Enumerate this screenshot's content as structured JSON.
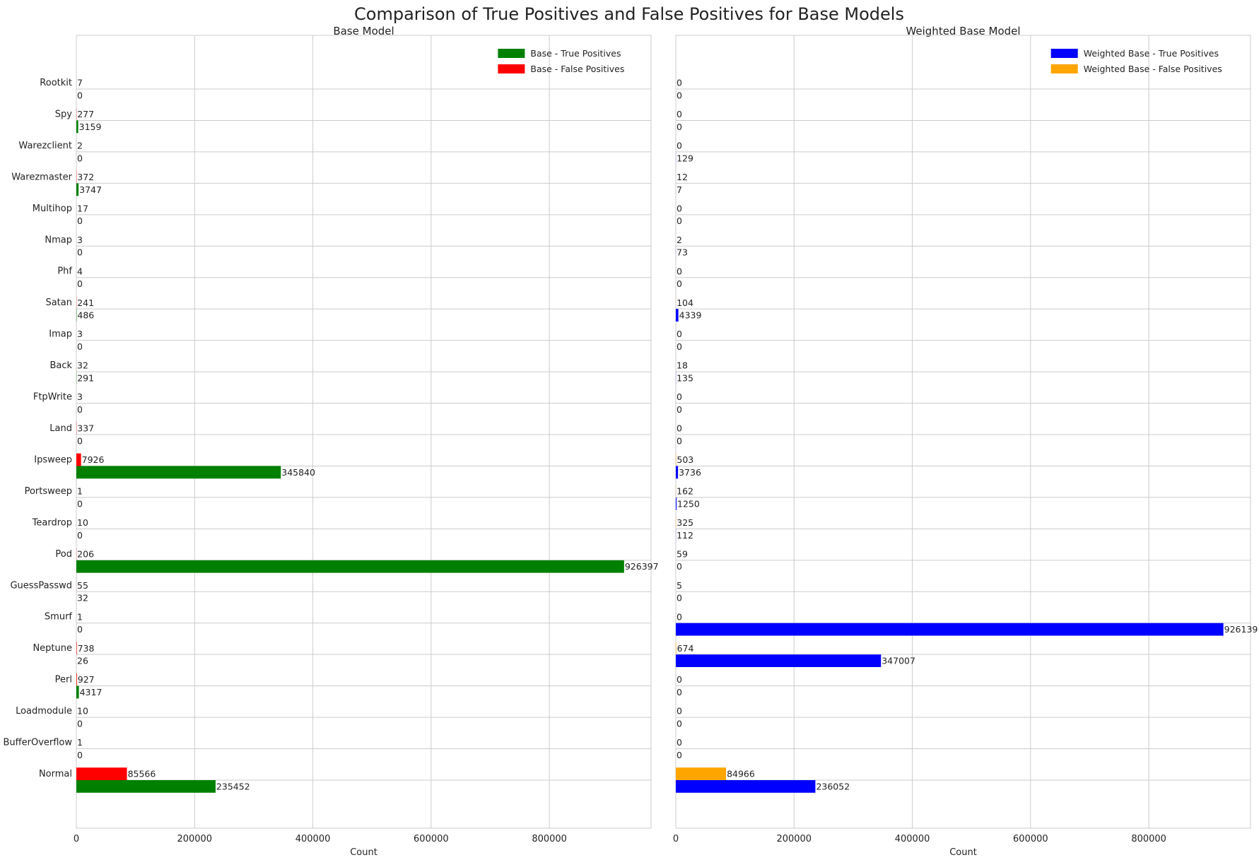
{
  "chart_data": {
    "title": "Comparison of True Positives and False Positives for Base Models",
    "type": "bar",
    "orientation": "horizontal",
    "categories": [
      "Normal",
      "BufferOverflow",
      "Loadmodule",
      "Perl",
      "Neptune",
      "Smurf",
      "GuessPasswd",
      "Pod",
      "Teardrop",
      "Portsweep",
      "Ipsweep",
      "Land",
      "FtpWrite",
      "Back",
      "Imap",
      "Satan",
      "Phf",
      "Nmap",
      "Multihop",
      "Warezmaster",
      "Warezclient",
      "Spy",
      "Rootkit"
    ],
    "xticks": [
      0,
      200000,
      400000,
      600000,
      800000
    ],
    "xlim": [
      0,
      972000
    ],
    "grid": true,
    "panels": [
      {
        "title": "Base Model",
        "xlabel": "Count",
        "legend_position": "top-right",
        "series": [
          {
            "name": "Base - True Positives",
            "color": "#008000",
            "values": [
              235452,
              0,
              0,
              4317,
              26,
              0,
              32,
              926397,
              0,
              0,
              345840,
              0,
              0,
              291,
              0,
              486,
              0,
              0,
              0,
              3747,
              0,
              3159,
              0
            ]
          },
          {
            "name": "Base - False Positives",
            "color": "#ff0000",
            "values": [
              85566,
              1,
              10,
              927,
              738,
              1,
              55,
              206,
              10,
              1,
              7926,
              337,
              3,
              32,
              3,
              241,
              4,
              3,
              17,
              372,
              2,
              277,
              7
            ]
          }
        ]
      },
      {
        "title": "Weighted Base Model",
        "xlabel": "Count",
        "legend_position": "top-right",
        "series": [
          {
            "name": "Weighted Base - True Positives",
            "color": "#0000ff",
            "values": [
              236052,
              0,
              0,
              0,
              347007,
              926139,
              0,
              0,
              112,
              1250,
              3736,
              0,
              0,
              135,
              0,
              4339,
              0,
              73,
              0,
              7,
              129,
              0,
              0
            ]
          },
          {
            "name": "Weighted Base - False Positives",
            "color": "#ffa500",
            "values": [
              84966,
              0,
              0,
              0,
              674,
              0,
              5,
              59,
              325,
              162,
              503,
              0,
              0,
              18,
              0,
              104,
              0,
              2,
              0,
              12,
              0,
              0,
              0
            ]
          }
        ]
      }
    ]
  }
}
